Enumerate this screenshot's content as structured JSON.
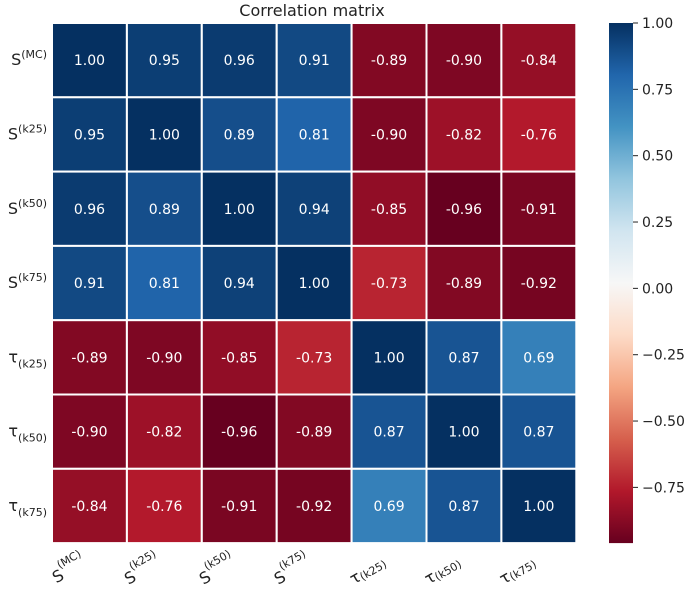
{
  "chart_data": {
    "type": "heatmap",
    "title": "Correlation matrix",
    "row_labels": [
      {
        "base": "S",
        "script": "(MC)",
        "pos": "sup"
      },
      {
        "base": "S",
        "script": "(k25)",
        "pos": "sup"
      },
      {
        "base": "S",
        "script": "(k50)",
        "pos": "sup"
      },
      {
        "base": "S",
        "script": "(k75)",
        "pos": "sup"
      },
      {
        "base": "τ",
        "script": "(k25)",
        "pos": "sub"
      },
      {
        "base": "τ",
        "script": "(k50)",
        "pos": "sub"
      },
      {
        "base": "τ",
        "script": "(k75)",
        "pos": "sub"
      }
    ],
    "col_labels": [
      {
        "base": "S",
        "script": "(MC)",
        "pos": "sup"
      },
      {
        "base": "S",
        "script": "(k25)",
        "pos": "sup"
      },
      {
        "base": "S",
        "script": "(k50)",
        "pos": "sup"
      },
      {
        "base": "S",
        "script": "(k75)",
        "pos": "sup"
      },
      {
        "base": "τ",
        "script": "(k25)",
        "pos": "sub"
      },
      {
        "base": "τ",
        "script": "(k50)",
        "pos": "sub"
      },
      {
        "base": "τ",
        "script": "(k75)",
        "pos": "sub"
      }
    ],
    "values": [
      [
        1.0,
        0.95,
        0.96,
        0.91,
        -0.89,
        -0.9,
        -0.84
      ],
      [
        0.95,
        1.0,
        0.89,
        0.81,
        -0.9,
        -0.82,
        -0.76
      ],
      [
        0.96,
        0.89,
        1.0,
        0.94,
        -0.85,
        -0.96,
        -0.91
      ],
      [
        0.91,
        0.81,
        0.94,
        1.0,
        -0.73,
        -0.89,
        -0.92
      ],
      [
        -0.89,
        -0.9,
        -0.85,
        -0.73,
        1.0,
        0.87,
        0.69
      ],
      [
        -0.9,
        -0.82,
        -0.96,
        -0.89,
        0.87,
        1.0,
        0.87
      ],
      [
        -0.84,
        -0.76,
        -0.91,
        -0.92,
        0.69,
        0.87,
        1.0
      ]
    ],
    "colorbar": {
      "min": -0.96,
      "max": 1.0,
      "ticks": [
        -0.75,
        -0.5,
        -0.25,
        0.0,
        0.25,
        0.5,
        0.75,
        1.0
      ],
      "tick_labels": [
        "−0.75",
        "−0.50",
        "−0.25",
        "0.00",
        "0.25",
        "0.50",
        "0.75",
        "1.00"
      ],
      "colormap": "RdBu"
    }
  }
}
